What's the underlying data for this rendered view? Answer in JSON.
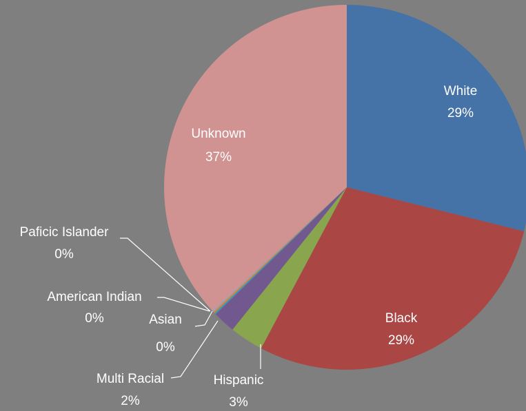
{
  "chart_data": {
    "type": "pie",
    "title": "",
    "slices": [
      {
        "label": "White",
        "value": 29,
        "pct_label": "29%",
        "color": "#4572a7"
      },
      {
        "label": "Black",
        "value": 29,
        "pct_label": "29%",
        "color": "#aa4643"
      },
      {
        "label": "Hispanic",
        "value": 3,
        "pct_label": "3%",
        "color": "#89a54e"
      },
      {
        "label": "Multi Racial",
        "value": 2,
        "pct_label": "2%",
        "color": "#71588f"
      },
      {
        "label": "Asian",
        "value": 0.15,
        "pct_label": "0%",
        "color": "#4198af"
      },
      {
        "label": "American Indian",
        "value": 0.15,
        "pct_label": "0%",
        "color": "#db843d"
      },
      {
        "label": "Paficic Islander",
        "value": 0.1,
        "pct_label": "0%",
        "color": "#93a9cf"
      },
      {
        "label": "Unknown",
        "value": 37,
        "pct_label": "37%",
        "color": "#d19392"
      }
    ]
  }
}
